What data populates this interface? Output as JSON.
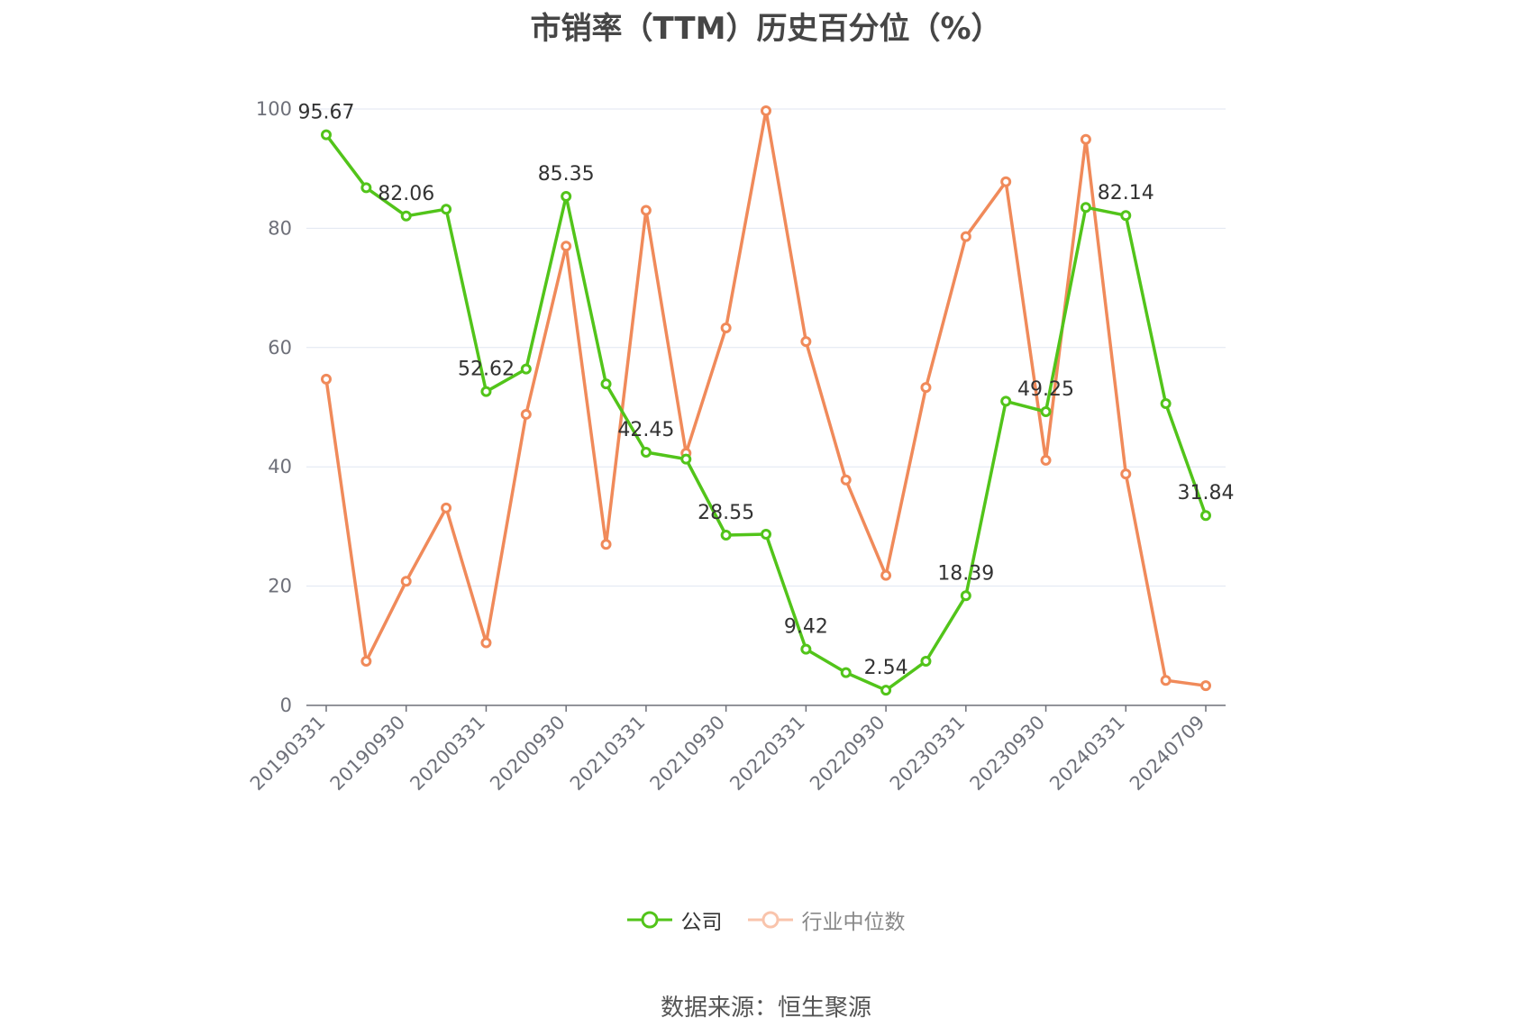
{
  "chart_data": {
    "type": "line",
    "title": "市销率（TTM）历史百分位（%）",
    "xlabel": "",
    "ylabel": "",
    "ylim": [
      0,
      100
    ],
    "yticks": [
      0,
      20,
      40,
      60,
      80,
      100
    ],
    "grid": true,
    "legend_position": "bottom",
    "x": [
      "20190331",
      "20190630",
      "20190930",
      "20191231",
      "20200331",
      "20200630",
      "20200930",
      "20201231",
      "20210331",
      "20210630",
      "20210930",
      "20211231",
      "20220331",
      "20220630",
      "20220930",
      "20221231",
      "20230331",
      "20230630",
      "20230930",
      "20231231",
      "20240331",
      "20240630",
      "20240709"
    ],
    "xtick_labels": [
      "20190331",
      "20190930",
      "20200331",
      "20200930",
      "20210331",
      "20210930",
      "20220331",
      "20220930",
      "20230331",
      "20230930",
      "20240331",
      "20240709"
    ],
    "series": [
      {
        "name": "公司",
        "color": "#52c41a",
        "values": [
          95.67,
          86.8,
          82.06,
          83.2,
          52.62,
          56.4,
          85.35,
          53.9,
          42.45,
          41.3,
          28.55,
          28.7,
          9.42,
          5.5,
          2.54,
          7.4,
          18.39,
          51.0,
          49.25,
          83.5,
          82.14,
          50.6,
          31.84
        ],
        "data_labels": [
          {
            "index": 0,
            "text": "95.67"
          },
          {
            "index": 2,
            "text": "82.06"
          },
          {
            "index": 4,
            "text": "52.62"
          },
          {
            "index": 6,
            "text": "85.35"
          },
          {
            "index": 8,
            "text": "42.45"
          },
          {
            "index": 10,
            "text": "28.55"
          },
          {
            "index": 12,
            "text": "9.42"
          },
          {
            "index": 14,
            "text": "2.54"
          },
          {
            "index": 16,
            "text": "18.39"
          },
          {
            "index": 18,
            "text": "49.25"
          },
          {
            "index": 20,
            "text": "82.14"
          },
          {
            "index": 22,
            "text": "31.84"
          }
        ]
      },
      {
        "name": "行业中位数",
        "color": "#f08a5a",
        "values": [
          54.7,
          7.4,
          20.8,
          33.1,
          10.5,
          48.8,
          77.0,
          27.0,
          83.0,
          42.3,
          63.3,
          99.7,
          61.0,
          37.8,
          21.8,
          53.3,
          78.6,
          87.8,
          41.1,
          94.9,
          38.8,
          4.2,
          3.3
        ]
      }
    ]
  },
  "source": "数据来源：恒生聚源"
}
